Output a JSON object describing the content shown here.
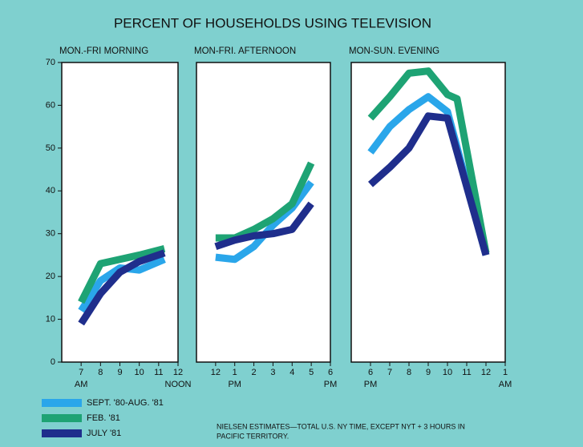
{
  "title": "PERCENT OF HOUSEHOLDS USING TELEVISION",
  "chart_data": [
    {
      "type": "line",
      "title": "MON.-FRI MORNING",
      "xlim": [
        6,
        12
      ],
      "ylim": [
        0,
        70
      ],
      "xticks": [
        7,
        8,
        9,
        10,
        11,
        12
      ],
      "yticks": [
        0,
        10,
        20,
        30,
        40,
        50,
        60,
        70
      ],
      "axis_notes": [
        {
          "value": 7,
          "label": "AM"
        },
        {
          "value": 12,
          "label": "NOON"
        }
      ],
      "series": [
        {
          "name": "SEPT. '80-AUG. '81",
          "color": "#2aa6ea",
          "x": [
            7,
            8,
            9,
            10,
            11.3
          ],
          "values": [
            12,
            19,
            22,
            21.5,
            24
          ]
        },
        {
          "name": "FEB. '81",
          "color": "#1ea374",
          "x": [
            7,
            8,
            9,
            10,
            11.3
          ],
          "values": [
            14,
            23,
            24,
            25,
            26.5
          ]
        },
        {
          "name": "JULY '81",
          "color": "#1f2e8c",
          "x": [
            7,
            8,
            9,
            10,
            11.3
          ],
          "values": [
            9,
            16,
            21,
            23.5,
            25.5
          ]
        }
      ]
    },
    {
      "type": "line",
      "title": "MON-FRI. AFTERNOON",
      "xlim": [
        11,
        18
      ],
      "ylim": [
        0,
        70
      ],
      "xticks": [
        {
          "value": 12,
          "label": "12"
        },
        {
          "value": 13,
          "label": "1"
        },
        {
          "value": 14,
          "label": "2"
        },
        {
          "value": 15,
          "label": "3"
        },
        {
          "value": 16,
          "label": "4"
        },
        {
          "value": 17,
          "label": "5"
        },
        {
          "value": 18,
          "label": "6"
        }
      ],
      "axis_notes": [
        {
          "value": 13,
          "label": "PM"
        },
        {
          "value": 18,
          "label": "PM"
        }
      ],
      "series": [
        {
          "color": "#2aa6ea",
          "x": [
            12,
            13,
            14,
            15,
            16,
            17
          ],
          "values": [
            24.5,
            24,
            27,
            32,
            36,
            42
          ]
        },
        {
          "color": "#1ea374",
          "x": [
            12,
            13,
            14,
            15,
            16,
            17
          ],
          "values": [
            29,
            29,
            31,
            33.5,
            37,
            46.5
          ]
        },
        {
          "color": "#1f2e8c",
          "x": [
            12,
            13,
            14,
            15,
            16,
            17
          ],
          "values": [
            27,
            28.5,
            29.5,
            30,
            31,
            37
          ]
        }
      ]
    },
    {
      "type": "line",
      "title": "MON-SUN. EVENING",
      "xlim": [
        17,
        25
      ],
      "ylim": [
        0,
        70
      ],
      "xticks": [
        {
          "value": 18,
          "label": "6"
        },
        {
          "value": 19,
          "label": "7"
        },
        {
          "value": 20,
          "label": "8"
        },
        {
          "value": 21,
          "label": "9"
        },
        {
          "value": 22,
          "label": "10"
        },
        {
          "value": 23,
          "label": "11"
        },
        {
          "value": 24,
          "label": "12"
        },
        {
          "value": 25,
          "label": "1"
        }
      ],
      "axis_notes": [
        {
          "value": 18,
          "label": "PM"
        },
        {
          "value": 25,
          "label": "AM"
        }
      ],
      "series": [
        {
          "color": "#2aa6ea",
          "x": [
            18,
            19,
            20,
            21,
            22,
            24
          ],
          "values": [
            49,
            55,
            59,
            62,
            58.5,
            25
          ]
        },
        {
          "color": "#1ea374",
          "x": [
            18,
            19,
            20,
            21,
            22,
            22.5,
            24
          ],
          "values": [
            57,
            62,
            67.5,
            68,
            62.5,
            61.5,
            25.5
          ]
        },
        {
          "color": "#1f2e8c",
          "x": [
            18,
            19,
            20,
            21,
            22,
            24
          ],
          "values": [
            41.5,
            45.5,
            50,
            57.5,
            57,
            25
          ]
        }
      ]
    }
  ],
  "footnote": [
    "NIELSEN ESTIMATES—TOTAL U.S. NY TIME, EXCEPT NYT + 3 HOURS IN",
    "PACIFIC TERRITORY."
  ]
}
